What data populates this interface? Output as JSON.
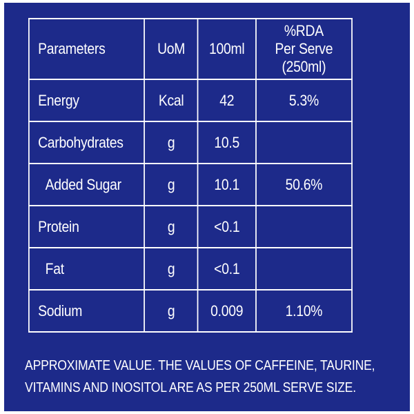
{
  "table": {
    "headers": {
      "parameters": "Parameters",
      "uom": "UoM",
      "per_100ml": "100ml",
      "rda_line1": "%RDA",
      "rda_line2": "Per Serve (250ml)"
    },
    "rows": [
      {
        "parameter": "Energy",
        "uom": "Kcal",
        "per_100ml": "42",
        "rda": "5.3%"
      },
      {
        "parameter": "Carbohydrates",
        "uom": "g",
        "per_100ml": "10.5",
        "rda": ""
      },
      {
        "parameter": "Added Sugar",
        "uom": "g",
        "per_100ml": "10.1",
        "rda": "50.6%"
      },
      {
        "parameter": "Protein",
        "uom": "g",
        "per_100ml": "<0.1",
        "rda": ""
      },
      {
        "parameter": "Fat",
        "uom": "g",
        "per_100ml": "<0.1",
        "rda": ""
      },
      {
        "parameter": "Sodium",
        "uom": "g",
        "per_100ml": "0.009",
        "rda": "1.10%"
      }
    ]
  },
  "footnote": {
    "line1": "APPROXIMATE VALUE. THE VALUES OF CAFFEINE, TAURINE,",
    "line2": "VITAMINS AND INOSITOL ARE AS PER 250ML SERVE SIZE."
  },
  "colors": {
    "background": "#1d2a8a",
    "text": "#ffffff",
    "border": "#ffffff"
  }
}
